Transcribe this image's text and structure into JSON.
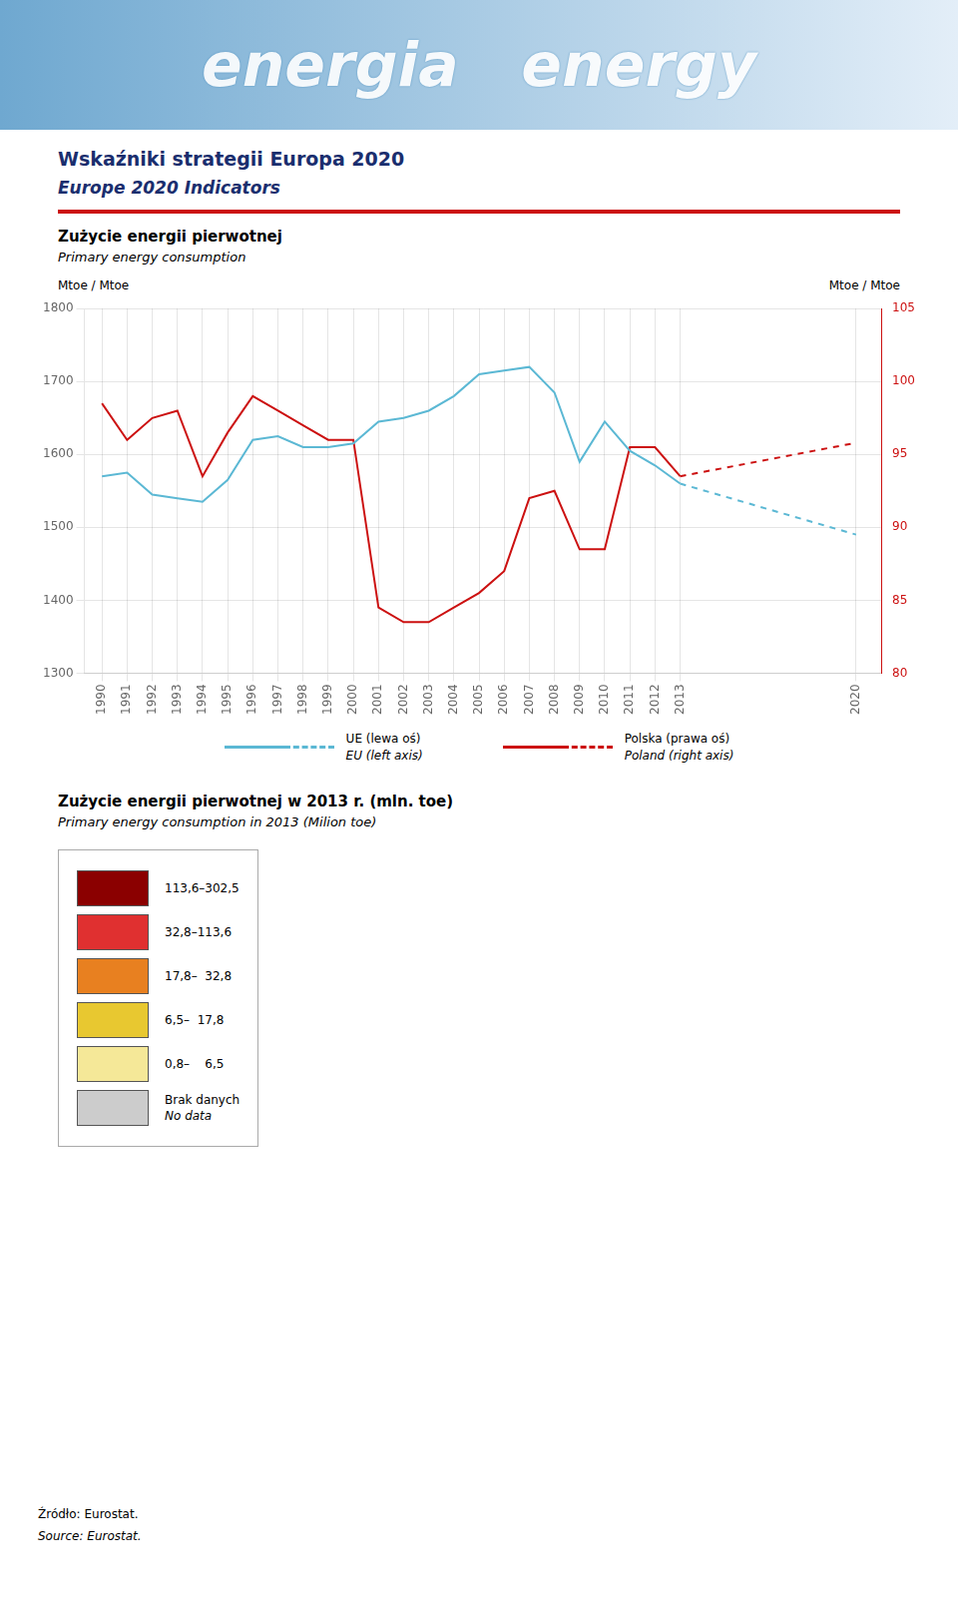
{
  "chart_data": {
    "type": "line",
    "title": "Wskaźniki strategii Europa 2020",
    "subtitle": "Europe 2020 Indicators",
    "annotations": [
      "energia   energy",
      "Zużycie energii pierwotnej",
      "Primary energy consumption",
      "EU (left axis)",
      "Poland (right axis)",
      "Zużycie energii pierwotnej w 2013 r. (mln. toe)",
      "Primary energy consumption in 2013 (Milion toe)",
      {
        "text": "113,6–302,5",
        "color": "#8b0000"
      },
      {
        "text": "32,8–113,6",
        "color": "#e03030"
      },
      {
        "text": "17,8–  32,8",
        "color": "#e88020"
      },
      {
        "text": "6,5–  17,8",
        "color": "#e8c830"
      },
      {
        "text": "0,8–    6,5",
        "color": "#f5e898"
      },
      {
        "text": "Brak danych\nNo data",
        "color": "#cccccc"
      },
      "Źródło: Eurostat.",
      "Source: Eurostat."
    ],
    "ylabel": "Mtoe / Mtoe",
    "y2label": "Mtoe / Mtoe",
    "xlim": [
      1989.3,
      2021
    ],
    "xticks": [
      1990,
      1991,
      1992,
      1993,
      1994,
      1995,
      1996,
      1997,
      1998,
      1999,
      2000,
      2001,
      2002,
      2003,
      2004,
      2005,
      2006,
      2007,
      2008,
      2009,
      2010,
      2011,
      2012,
      2013,
      2020
    ],
    "ylim": [
      1300,
      1800
    ],
    "yticks": [
      1300,
      1400,
      1500,
      1600,
      1700,
      1800
    ],
    "y2lim": [
      80,
      105
    ],
    "y2ticks": [
      80,
      85,
      90,
      95,
      100,
      105
    ],
    "grid": true,
    "series": [
      {
        "name": "UE (lewa oś)",
        "color": "#5bb8d4",
        "line_style": "solid",
        "x": [
          1990,
          1991,
          1992,
          1993,
          1994,
          1995,
          1996,
          1997,
          1998,
          1999,
          2000,
          2001,
          2002,
          2003,
          2004,
          2005,
          2006,
          2007,
          2008,
          2009,
          2010,
          2011,
          2012,
          2013
        ],
        "values": [
          1570,
          1575,
          1545,
          1540,
          1535,
          1565,
          1620,
          1625,
          1610,
          1610,
          1615,
          1645,
          1650,
          1660,
          1680,
          1710,
          1715,
          1720,
          1685,
          1590,
          1645,
          1605,
          1585,
          1560
        ]
      },
      {
        "color": "#5bb8d4",
        "line_style": "dashed",
        "x": [
          2013,
          2020
        ],
        "values": [
          1560,
          1490
        ]
      },
      {
        "name": "Polska (prawa oś)",
        "color": "#cc1111",
        "line_style": "solid",
        "axis": "y2",
        "x": [
          1990,
          1991,
          1992,
          1993,
          1994,
          1995,
          1996,
          1997,
          1998,
          1999,
          2000,
          2001,
          2002,
          2003,
          2004,
          2005,
          2006,
          2007,
          2008,
          2009,
          2010,
          2011,
          2012,
          2013
        ],
        "values": [
          98.5,
          96.0,
          97.5,
          98.0,
          93.5,
          96.5,
          99.0,
          98.0,
          97.0,
          96.0,
          96.0,
          84.5,
          83.5,
          83.5,
          84.5,
          85.5,
          87.0,
          92.0,
          92.5,
          88.5,
          88.5,
          95.5,
          95.5,
          93.5
        ]
      },
      {
        "color": "#cc1111",
        "line_style": "dashed",
        "axis": "y2",
        "x": [
          2013,
          2020
        ],
        "values": [
          93.5,
          95.8
        ]
      }
    ]
  }
}
